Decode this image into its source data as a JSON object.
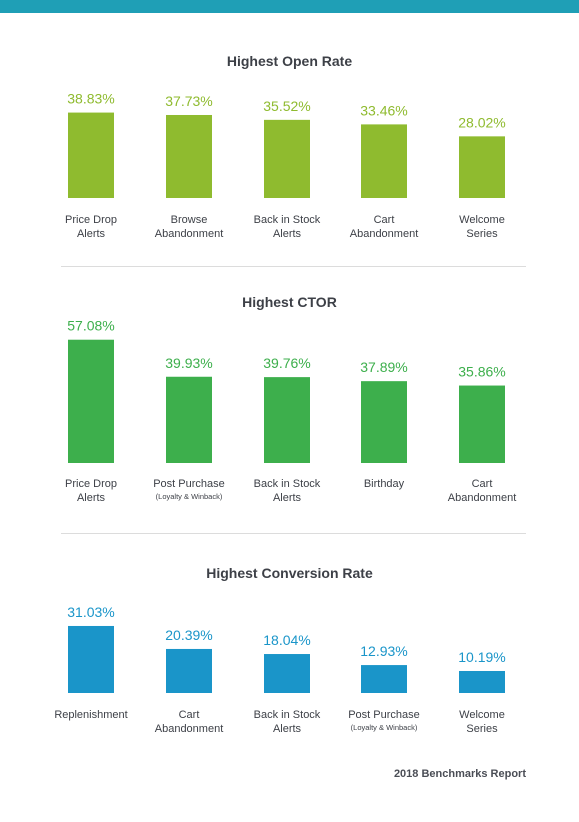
{
  "colors": {
    "top_bar": "#1f9fb6",
    "open_rate": "#8fbb2f",
    "ctor": "#3daf4c",
    "conversion": "#1a95c9"
  },
  "footer": "2018 Benchmarks Report",
  "chart_data": [
    {
      "type": "bar",
      "title": "Highest Open Rate",
      "color": "#8fbb2f",
      "categories": [
        "Price Drop Alerts",
        "Browse Abandonment",
        "Back in Stock Alerts",
        "Cart Abandonment",
        "Welcome Series"
      ],
      "category_lines": [
        [
          "Price Drop",
          "Alerts"
        ],
        [
          "Browse",
          "Abandonment"
        ],
        [
          "Back in Stock",
          "Alerts"
        ],
        [
          "Cart",
          "Abandonment"
        ],
        [
          "Welcome",
          "Series"
        ]
      ],
      "category_subs": [
        "",
        "",
        "",
        "",
        ""
      ],
      "values": [
        38.83,
        37.73,
        35.52,
        33.46,
        28.02
      ],
      "value_labels": [
        "38.83%",
        "37.73%",
        "35.52%",
        "33.46%",
        "28.02%"
      ],
      "unit": "%"
    },
    {
      "type": "bar",
      "title": "Highest CTOR",
      "color": "#3daf4c",
      "categories": [
        "Price Drop Alerts",
        "Post Purchase (Loyalty & Winback)",
        "Back in Stock Alerts",
        "Birthday",
        "Cart Abandonment"
      ],
      "category_lines": [
        [
          "Price Drop",
          "Alerts"
        ],
        [
          "Post Purchase"
        ],
        [
          "Back in Stock",
          "Alerts"
        ],
        [
          "Birthday"
        ],
        [
          "Cart",
          "Abandonment"
        ]
      ],
      "category_subs": [
        "",
        "(Loyalty & Winback)",
        "",
        "",
        ""
      ],
      "values": [
        57.08,
        39.93,
        39.76,
        37.89,
        35.86
      ],
      "value_labels": [
        "57.08%",
        "39.93%",
        "39.76%",
        "37.89%",
        "35.86%"
      ],
      "unit": "%"
    },
    {
      "type": "bar",
      "title": "Highest Conversion Rate",
      "color": "#1a95c9",
      "categories": [
        "Replenishment",
        "Cart Abandonment",
        "Back in Stock Alerts",
        "Post Purchase (Loyalty & Winback)",
        "Welcome Series"
      ],
      "category_lines": [
        [
          "Replenishment"
        ],
        [
          "Cart",
          "Abandonment"
        ],
        [
          "Back in Stock",
          "Alerts"
        ],
        [
          "Post Purchase"
        ],
        [
          "Welcome",
          "Series"
        ]
      ],
      "category_subs": [
        "",
        "",
        "",
        "(Loyalty & Winback)",
        ""
      ],
      "values": [
        31.03,
        20.39,
        18.04,
        12.93,
        10.19
      ],
      "value_labels": [
        "31.03%",
        "20.39%",
        "18.04%",
        "12.93%",
        "10.19%"
      ],
      "unit": "%"
    }
  ]
}
